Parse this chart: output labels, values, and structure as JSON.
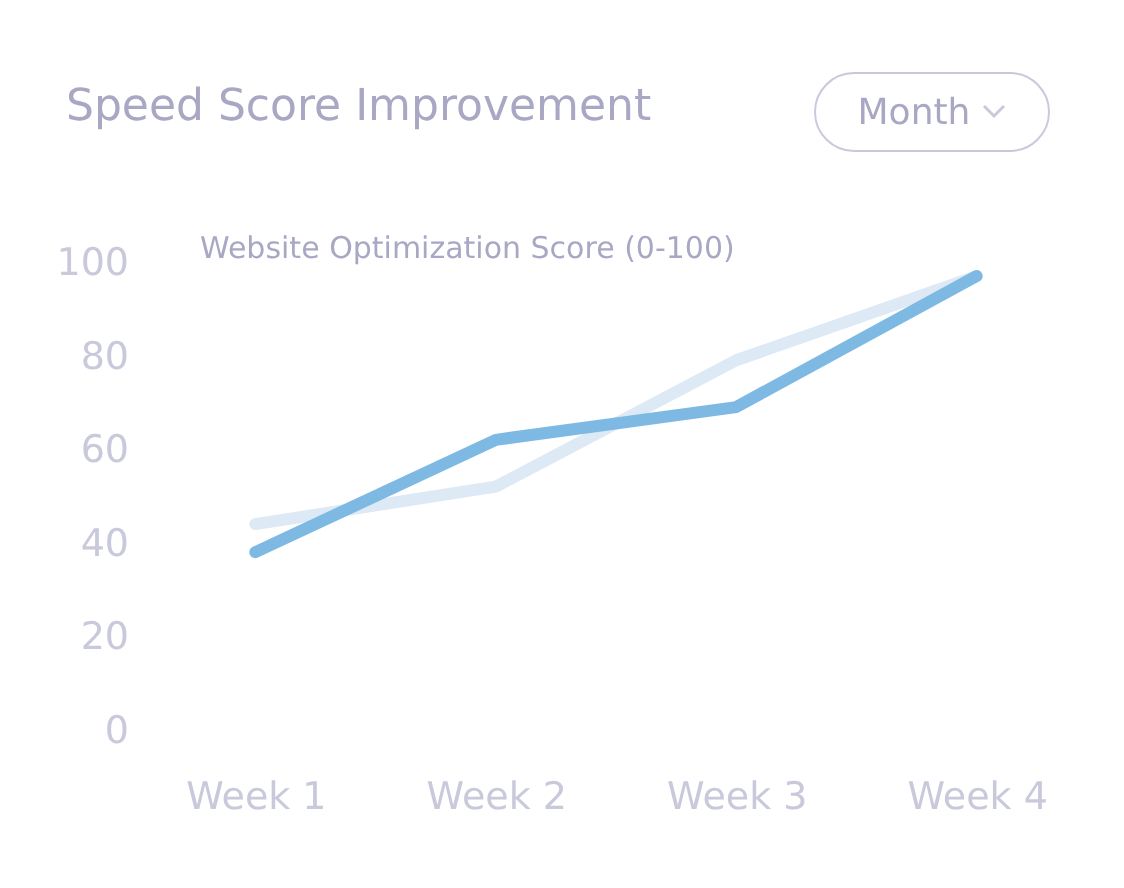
{
  "chart_data": {
    "type": "line",
    "title": "Speed Score Improvement",
    "subtitle": "Website Optimization Score (0-100)",
    "annotations": [
      "Month"
    ],
    "categories": [
      "Week 1",
      "Week 2",
      "Week 3",
      "Week 4"
    ],
    "ylim": [
      0,
      100
    ],
    "yticks": [
      0,
      20,
      40,
      60,
      80,
      100
    ],
    "grid": false,
    "series": [
      {
        "color": "#dde9f5",
        "values": [
          44,
          52,
          79,
          97
        ]
      },
      {
        "color": "#7db9e2",
        "values": [
          38,
          62,
          69,
          97
        ]
      }
    ]
  }
}
